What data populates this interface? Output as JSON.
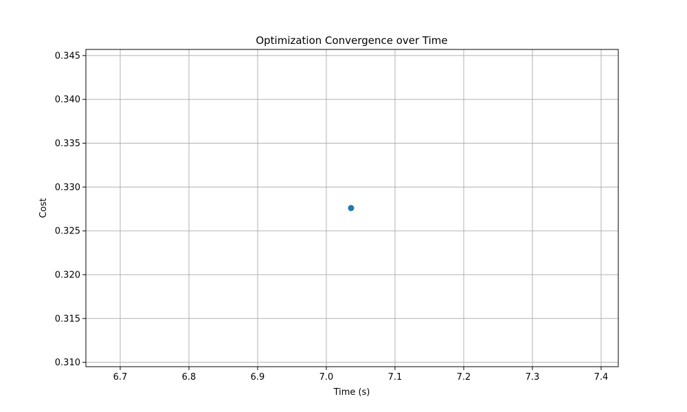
{
  "chart_data": {
    "type": "scatter",
    "title": "Optimization Convergence over Time",
    "xlabel": "Time (s)",
    "ylabel": "Cost",
    "xlim": [
      6.65,
      7.425
    ],
    "ylim": [
      0.3095,
      0.3457
    ],
    "xticks": [
      6.7,
      6.8,
      6.9,
      7.0,
      7.1,
      7.2,
      7.3,
      7.4
    ],
    "xtick_labels": [
      "6.7",
      "6.8",
      "6.9",
      "7.0",
      "7.1",
      "7.2",
      "7.3",
      "7.4"
    ],
    "yticks": [
      0.31,
      0.315,
      0.32,
      0.325,
      0.33,
      0.335,
      0.34,
      0.345
    ],
    "ytick_labels": [
      "0.310",
      "0.315",
      "0.320",
      "0.325",
      "0.330",
      "0.335",
      "0.340",
      "0.345"
    ],
    "grid": true,
    "points": [
      {
        "x": 7.036,
        "y": 0.3276
      }
    ],
    "colors": {
      "marker": "#1f77b4",
      "grid": "#b0b0b0",
      "frame": "#000000"
    }
  }
}
